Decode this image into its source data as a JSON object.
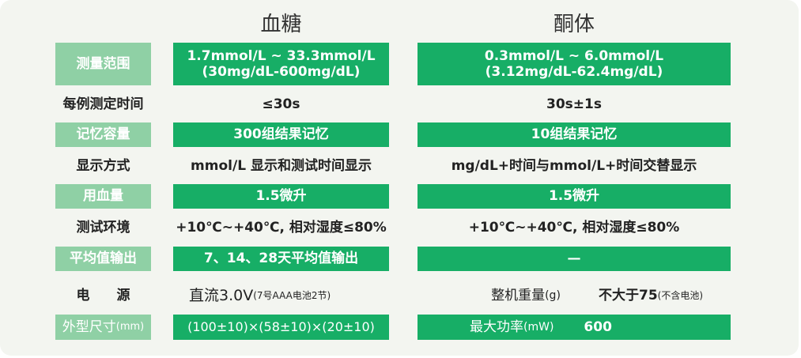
{
  "headers": {
    "glucose": "血糖",
    "ketone": "酮体"
  },
  "rows": [
    {
      "label": "测量范围",
      "glucose": "1.7mmol/L ~ 33.3mmol/L",
      "glucose2": "(30mg/dL-600mg/dL)",
      "ketone": "0.3mmol/L ~ 6.0mmol/L",
      "ketone2": "(3.12mg/dL-62.4mg/dL)"
    },
    {
      "label": "每例测定时间",
      "glucose": "≤30s",
      "ketone": "30s±1s"
    },
    {
      "label": "记忆容量",
      "glucose": "300组结果记忆",
      "ketone": "10组结果记忆"
    },
    {
      "label": "显示方式",
      "glucose": "mmol/L 显示和测试时间显示",
      "ketone": "mg/dL+时间与mmol/L+时间交替显示"
    },
    {
      "label": "用血量",
      "glucose": "1.5微升",
      "ketone": "1.5微升"
    },
    {
      "label": "测试环境",
      "glucose": "+10℃~+40℃, 相对湿度≤80%",
      "ketone": "+10℃~+40℃, 相对湿度≤80%"
    },
    {
      "label": "平均值输出",
      "glucose": "7、14、28天平均值输出",
      "ketone": "—"
    }
  ],
  "power": {
    "label": "电　　源",
    "value": "直流3.0V",
    "note": "(7号AAA电池2节)",
    "weight_label": "整机重量",
    "weight_unit": "(g)",
    "weight_value": "不大于75",
    "weight_note": "(不含电池)"
  },
  "size": {
    "label": "外型尺寸",
    "unit": "(mm)",
    "value": "(100±10)×(58±10)×(20±10)",
    "power_label": "最大功率",
    "power_unit": "(mW)",
    "power_value": "600"
  }
}
